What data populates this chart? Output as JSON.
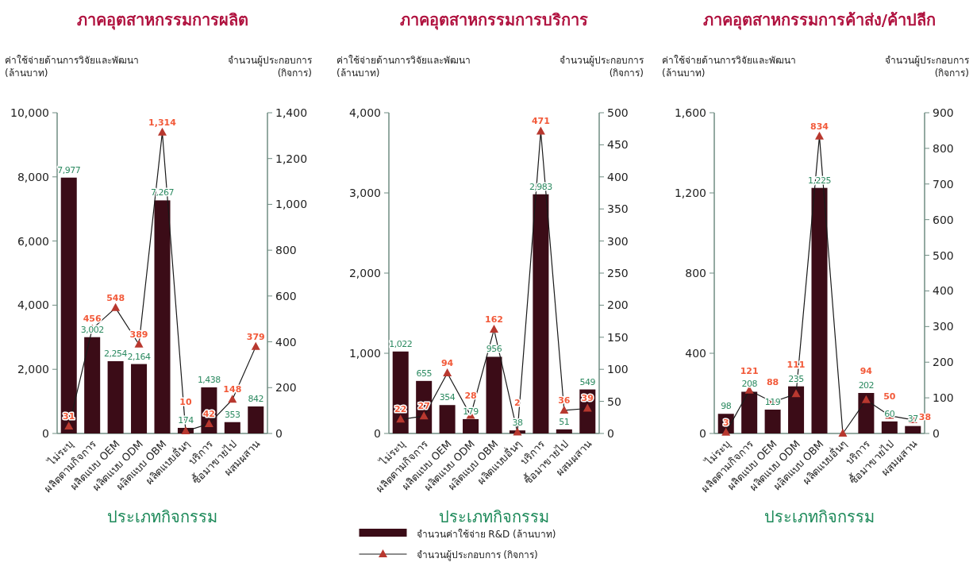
{
  "chart_data": [
    {
      "type": "bar",
      "title": "ภาคอุตสาหกรรมการผลิต",
      "ylabel": "ค่าใช้จ่ายด้านการวิจัยและพัฒนา\n(ล้านบาท)",
      "y2label": "จำนวนผู้ประกอบการ\n(กิจการ)",
      "xlabel": "ประเภทกิจกรรม",
      "categories": [
        "ไม่ระบุ",
        "ผลิตตามกิจการ",
        "ผลิตแบบ OEM",
        "ผลิตแบบ ODM",
        "ผลิตแบบ OBM",
        "ผลิตแบบอื่นๆ",
        "บริการ",
        "ซื้อมาขายไป",
        "ผสมผสาน"
      ],
      "ylim": [
        0,
        10000
      ],
      "yticks": [
        0,
        {
          "value": 2000,
          "label": "2,000"
        },
        {
          "value": 4000,
          "label": "4,000"
        },
        {
          "value": 6000,
          "label": "6,000"
        },
        {
          "value": 8000,
          "label": "8,000"
        },
        {
          "value": 10000,
          "label": "10,000"
        }
      ],
      "y2lim": [
        0,
        1400
      ],
      "y2ticks": [
        0,
        200,
        400,
        600,
        800,
        {
          "value": 1000,
          "label": "1,000"
        },
        {
          "value": 1200,
          "label": "1,200"
        },
        {
          "value": 1400,
          "label": "1,400"
        }
      ],
      "series": [
        {
          "color": "#3b0c17",
          "values": [
            7977,
            3002,
            2254,
            2164,
            7267,
            174,
            1438,
            353,
            842
          ],
          "value_labels": [
            "7,977",
            "3,002",
            "2,254",
            "2,164",
            "7,267",
            "174",
            "1,438",
            "353",
            "842"
          ]
        },
        {
          "type": "line",
          "axis": "y2",
          "color": "#b8382f",
          "marker": "triangle",
          "values": [
            31,
            456,
            548,
            389,
            1314,
            10,
            42,
            148,
            379
          ],
          "value_labels": [
            "31",
            "456",
            "548",
            "389",
            "1,314",
            "10",
            "42",
            "148",
            "379"
          ]
        }
      ]
    },
    {
      "type": "bar",
      "title": "ภาคอุตสาหกรรมการบริการ",
      "ylabel": "ค่าใช้จ่ายด้านการวิจัยและพัฒนา\n(ล้านบาท)",
      "y2label": "จำนวนผู้ประกอบการ\n(กิจการ)",
      "xlabel": "ประเภทกิจกรรม",
      "legend": "bottom",
      "categories": [
        "ไม่ระบุ",
        "ผลิตตามกิจการ",
        "ผลิตแบบ OEM",
        "ผลิตแบบ ODM",
        "ผลิตแบบ OBM",
        "ผลิตแบบอื่นๆ",
        "บริการ",
        "ซื้อมาขายไป",
        "ผสมผสาน"
      ],
      "ylim": [
        0,
        4000
      ],
      "yticks": [
        0,
        {
          "value": 1000,
          "label": "1,000"
        },
        {
          "value": 2000,
          "label": "2,000"
        },
        {
          "value": 3000,
          "label": "3,000"
        },
        {
          "value": 4000,
          "label": "4,000"
        }
      ],
      "y2lim": [
        0,
        500
      ],
      "y2ticks": [
        0,
        50,
        100,
        150,
        200,
        250,
        300,
        350,
        400,
        450,
        500
      ],
      "series": [
        {
          "name": "จำนวนค่าใช้จ่าย R&D (ล้านบาท)",
          "color": "#3b0c17",
          "values": [
            1022,
            655,
            354,
            179,
            956,
            38,
            2983,
            51,
            549
          ],
          "value_labels": [
            "1,022",
            "655",
            "354",
            "179",
            "956",
            "38",
            "2,983",
            "51",
            "549"
          ]
        },
        {
          "type": "line",
          "axis": "y2",
          "name": "จำนวนผู้ประกอบการ (กิจการ)",
          "color": "#b8382f",
          "marker": "triangle",
          "values": [
            22,
            27,
            94,
            28,
            162,
            2,
            471,
            36,
            39
          ],
          "value_labels": [
            "22",
            "27",
            "94",
            "28",
            "162",
            "2",
            "471",
            "36",
            "39"
          ]
        }
      ]
    },
    {
      "type": "bar",
      "title": "ภาคอุตสาหกรรมการค้าส่ง/ค้าปลีก",
      "ylabel": "ค่าใช้จ่ายด้านการวิจัยและพัฒนา\n(ล้านบาท)",
      "y2label": "จำนวนผู้ประกอบการ\n(กิจการ)",
      "xlabel": "ประเภทกิจกรรม",
      "categories": [
        "ไม่ระบุ",
        "ผลิตตามกิจการ",
        "ผลิตแบบ OEM",
        "ผลิตแบบ ODM",
        "ผลิตแบบ OBM",
        "ผลิตแบบอื่นๆ",
        "บริการ",
        "ซื้อมาขายไป",
        "ผสมผสาน"
      ],
      "ylim": [
        0,
        1600
      ],
      "yticks": [
        0,
        400,
        800,
        {
          "value": 1200,
          "label": "1,200"
        },
        {
          "value": 1600,
          "label": "1,600"
        }
      ],
      "y2lim": [
        0,
        900
      ],
      "y2ticks": [
        0,
        100,
        200,
        300,
        400,
        500,
        600,
        700,
        800,
        900
      ],
      "series": [
        {
          "color": "#3b0c17",
          "values": [
            98,
            208,
            119,
            235,
            1225,
            0,
            202,
            60,
            37
          ],
          "value_labels": [
            "98",
            "208",
            "119",
            "235",
            "1,225",
            null,
            "202",
            "60",
            "37"
          ]
        },
        {
          "type": "line",
          "axis": "y2",
          "color": "#b8382f",
          "marker": "triangle",
          "values": [
            3,
            121,
            88,
            111,
            834,
            0,
            94,
            50,
            38
          ],
          "value_labels": [
            "3",
            "121",
            "88",
            "111",
            "834",
            null,
            "94",
            "50",
            "38"
          ]
        }
      ]
    }
  ]
}
